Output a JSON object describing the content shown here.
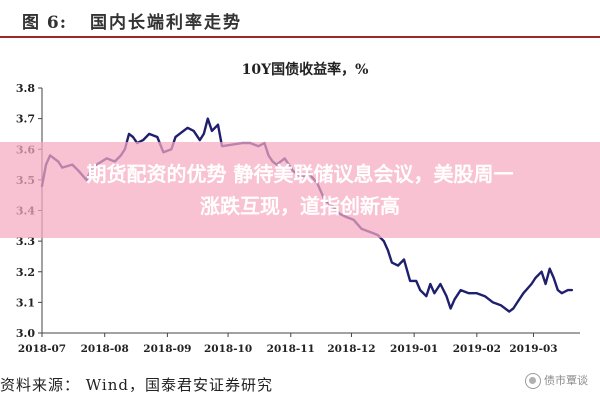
{
  "header": {
    "figure_label": "图 6:",
    "figure_title": "国内长端利率走势"
  },
  "chart_data": {
    "type": "line",
    "title": "10Y国债收益率，%",
    "xlabel": "",
    "ylabel": "",
    "ylim": [
      3.0,
      3.8
    ],
    "yticks": [
      "3.0",
      "3.1",
      "3.2",
      "3.3",
      "3.4",
      "3.5",
      "3.6",
      "3.7",
      "3.8"
    ],
    "xticks": [
      "2018-07",
      "2018-08",
      "2018-09",
      "2018-10",
      "2018-11",
      "2018-12",
      "2019-01",
      "2019-02",
      "2019-03"
    ],
    "grid": false,
    "line_color": "#1f1f6e",
    "series": [
      {
        "values": [
          [
            "2018-07-01",
            3.48
          ],
          [
            "2018-07-03",
            3.55
          ],
          [
            "2018-07-05",
            3.58
          ],
          [
            "2018-07-09",
            3.56
          ],
          [
            "2018-07-11",
            3.54
          ],
          [
            "2018-07-16",
            3.55
          ],
          [
            "2018-07-19",
            3.53
          ],
          [
            "2018-07-23",
            3.5
          ],
          [
            "2018-07-25",
            3.53
          ],
          [
            "2018-07-28",
            3.55
          ],
          [
            "2018-08-02",
            3.57
          ],
          [
            "2018-08-06",
            3.56
          ],
          [
            "2018-08-09",
            3.58
          ],
          [
            "2018-08-11",
            3.6
          ],
          [
            "2018-08-13",
            3.65
          ],
          [
            "2018-08-15",
            3.64
          ],
          [
            "2018-08-17",
            3.62
          ],
          [
            "2018-08-20",
            3.63
          ],
          [
            "2018-08-23",
            3.65
          ],
          [
            "2018-08-27",
            3.64
          ],
          [
            "2018-08-30",
            3.59
          ],
          [
            "2018-09-03",
            3.6
          ],
          [
            "2018-09-05",
            3.64
          ],
          [
            "2018-09-07",
            3.65
          ],
          [
            "2018-09-11",
            3.67
          ],
          [
            "2018-09-14",
            3.66
          ],
          [
            "2018-09-17",
            3.63
          ],
          [
            "2018-09-19",
            3.65
          ],
          [
            "2018-09-21",
            3.7
          ],
          [
            "2018-09-23",
            3.66
          ],
          [
            "2018-09-26",
            3.68
          ],
          [
            "2018-09-28",
            3.61
          ],
          [
            "2018-10-08",
            3.62
          ],
          [
            "2018-10-12",
            3.62
          ],
          [
            "2018-10-16",
            3.61
          ],
          [
            "2018-10-19",
            3.62
          ],
          [
            "2018-10-21",
            3.58
          ],
          [
            "2018-10-23",
            3.56
          ],
          [
            "2018-10-25",
            3.55
          ],
          [
            "2018-10-29",
            3.57
          ],
          [
            "2018-11-02",
            3.53
          ],
          [
            "2018-11-06",
            3.51
          ],
          [
            "2018-11-10",
            3.52
          ],
          [
            "2018-11-14",
            3.49
          ],
          [
            "2018-11-18",
            3.43
          ],
          [
            "2018-11-21",
            3.42
          ],
          [
            "2018-11-25",
            3.39
          ],
          [
            "2018-11-28",
            3.38
          ],
          [
            "2018-12-02",
            3.37
          ],
          [
            "2018-12-06",
            3.34
          ],
          [
            "2018-12-10",
            3.33
          ],
          [
            "2018-12-14",
            3.32
          ],
          [
            "2018-12-17",
            3.3
          ],
          [
            "2018-12-19",
            3.27
          ],
          [
            "2018-12-21",
            3.23
          ],
          [
            "2018-12-24",
            3.22
          ],
          [
            "2018-12-27",
            3.24
          ],
          [
            "2018-12-30",
            3.17
          ],
          [
            "2019-01-02",
            3.17
          ],
          [
            "2019-01-04",
            3.14
          ],
          [
            "2019-01-07",
            3.12
          ],
          [
            "2019-01-09",
            3.16
          ],
          [
            "2019-01-11",
            3.13
          ],
          [
            "2019-01-14",
            3.16
          ],
          [
            "2019-01-17",
            3.12
          ],
          [
            "2019-01-19",
            3.08
          ],
          [
            "2019-01-21",
            3.11
          ],
          [
            "2019-01-24",
            3.14
          ],
          [
            "2019-01-28",
            3.13
          ],
          [
            "2019-02-01",
            3.13
          ],
          [
            "2019-02-05",
            3.12
          ],
          [
            "2019-02-09",
            3.1
          ],
          [
            "2019-02-13",
            3.09
          ],
          [
            "2019-02-17",
            3.07
          ],
          [
            "2019-02-19",
            3.08
          ],
          [
            "2019-02-21",
            3.1
          ],
          [
            "2019-02-24",
            3.13
          ],
          [
            "2019-02-28",
            3.16
          ],
          [
            "2019-03-02",
            3.18
          ],
          [
            "2019-03-05",
            3.2
          ],
          [
            "2019-03-07",
            3.16
          ],
          [
            "2019-03-09",
            3.21
          ],
          [
            "2019-03-11",
            3.18
          ],
          [
            "2019-03-13",
            3.14
          ],
          [
            "2019-03-15",
            3.13
          ],
          [
            "2019-03-18",
            3.14
          ],
          [
            "2019-03-20",
            3.14
          ]
        ]
      }
    ]
  },
  "overlay": {
    "line1": "期货配资的优势 静待美联储议息会议，美股周一",
    "line2": "涨跌互现，道指创新高"
  },
  "footer": {
    "source": "资料来源： Wind，国泰君安证券研究",
    "watermark": "债市覃谈"
  }
}
